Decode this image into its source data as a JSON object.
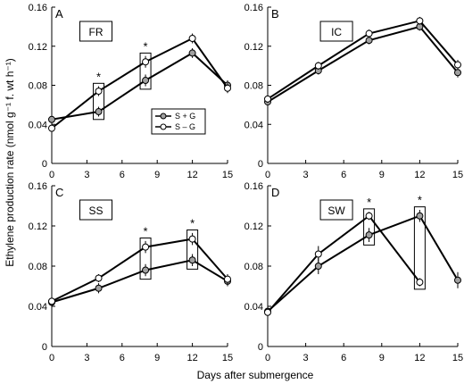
{
  "figure": {
    "ylabel": "Ethylene production rate (nmol g⁻¹ f. wt h⁻¹)",
    "xlabel": "Days after submergence"
  },
  "chart_data": [
    {
      "type": "line",
      "panel_letter": "A",
      "cultivar_label": "FR",
      "x": [
        0,
        4,
        8,
        12,
        15
      ],
      "xlim": [
        0,
        15
      ],
      "xticks": [
        "0",
        "3",
        "6",
        "9",
        "12",
        "15"
      ],
      "ylim": [
        0,
        0.16
      ],
      "yticks": [
        "0",
        "0.04",
        "0.08",
        "0.12",
        "0.16"
      ],
      "series": [
        {
          "name": "S + G",
          "values": [
            0.045,
            0.053,
            0.085,
            0.113,
            0.08
          ],
          "marker": "gray",
          "err": [
            0.004,
            0.005,
            0.006,
            0.005,
            0.005
          ]
        },
        {
          "name": "S – G",
          "values": [
            0.036,
            0.074,
            0.104,
            0.128,
            0.077
          ],
          "marker": "white",
          "err": [
            0.004,
            0.005,
            0.006,
            0.005,
            0.005
          ]
        }
      ],
      "significance_x": [
        4,
        8
      ],
      "legend": "center"
    },
    {
      "type": "line",
      "panel_letter": "B",
      "cultivar_label": "IC",
      "x": [
        0,
        4,
        8,
        12,
        15
      ],
      "xlim": [
        0,
        15
      ],
      "xticks": [
        "0",
        "3",
        "6",
        "9",
        "12",
        "15"
      ],
      "ylim": [
        0,
        0.16
      ],
      "yticks": [
        "0",
        "0.04",
        "0.08",
        "0.12",
        "0.16"
      ],
      "series": [
        {
          "name": "S + G",
          "values": [
            0.063,
            0.095,
            0.126,
            0.14,
            0.093
          ],
          "marker": "gray",
          "err": [
            0.004,
            0.004,
            0.004,
            0.004,
            0.005
          ]
        },
        {
          "name": "S – G",
          "values": [
            0.066,
            0.1,
            0.133,
            0.146,
            0.101
          ],
          "marker": "white",
          "err": [
            0.004,
            0.004,
            0.004,
            0.004,
            0.005
          ]
        }
      ],
      "significance_x": []
    },
    {
      "type": "line",
      "panel_letter": "C",
      "cultivar_label": "SS",
      "x": [
        0,
        4,
        8,
        12,
        15
      ],
      "xlim": [
        0,
        15
      ],
      "xticks": [
        "0",
        "3",
        "6",
        "9",
        "12",
        "15"
      ],
      "ylim": [
        0,
        0.16
      ],
      "yticks": [
        "0",
        "0.04",
        "0.08",
        "0.12",
        "0.16"
      ],
      "series": [
        {
          "name": "S + G",
          "values": [
            0.044,
            0.058,
            0.076,
            0.086,
            0.065
          ],
          "marker": "gray",
          "err": [
            0.004,
            0.005,
            0.006,
            0.006,
            0.005
          ]
        },
        {
          "name": "S – G",
          "values": [
            0.045,
            0.068,
            0.099,
            0.107,
            0.067
          ],
          "marker": "white",
          "err": [
            0.004,
            0.004,
            0.006,
            0.006,
            0.005
          ]
        }
      ],
      "significance_x": [
        8,
        12
      ]
    },
    {
      "type": "line",
      "panel_letter": "D",
      "cultivar_label": "SW",
      "x": [
        0,
        4,
        8,
        12,
        15
      ],
      "xlim": [
        0,
        15
      ],
      "xticks": [
        "0",
        "3",
        "6",
        "9",
        "12",
        "15"
      ],
      "ylim": [
        0,
        0.16
      ],
      "yticks": [
        "0",
        "0.04",
        "0.08",
        "0.12",
        "0.16"
      ],
      "series": [
        {
          "name": "S + G",
          "values": [
            0.035,
            0.08,
            0.111,
            0.13,
            0.066
          ],
          "marker": "gray",
          "err": [
            0.004,
            0.008,
            0.007,
            0.006,
            0.008
          ]
        },
        {
          "name": "S – G",
          "values": [
            0.034,
            0.092,
            0.13,
            0.064,
            null
          ],
          "marker": "white",
          "err": [
            0.004,
            0.008,
            0.004,
            0.004,
            0
          ]
        }
      ],
      "significance_x": [
        8,
        12
      ]
    }
  ]
}
